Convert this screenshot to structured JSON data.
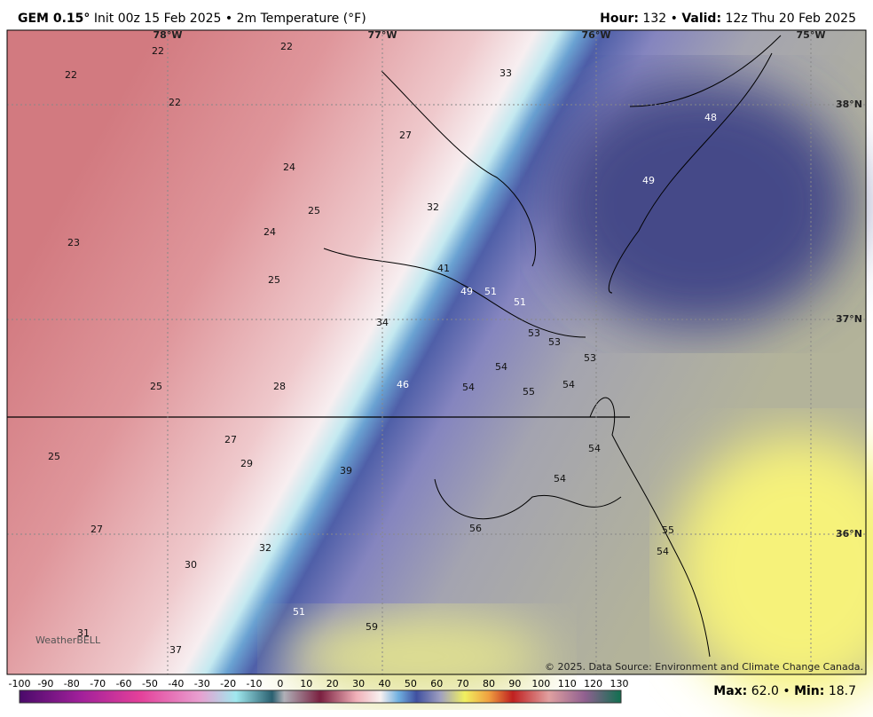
{
  "header": {
    "model": "GEM 0.15°",
    "description": "Init 00z 15 Feb 2025 • 2m Temperature (°F)",
    "hour_label": "Hour:",
    "hour_value": "132",
    "separator": "•",
    "valid_label": "Valid:",
    "valid_value": "12z Thu 20 Feb 2025"
  },
  "map": {
    "longitudes": [
      "78°W",
      "77°W",
      "76°W",
      "75°W"
    ],
    "latitudes": [
      "38°N",
      "37°N",
      "36°N"
    ],
    "labels": [
      22,
      22,
      22,
      22,
      33,
      27,
      24,
      25,
      24,
      32,
      23,
      25,
      41,
      49,
      51,
      51,
      48,
      49,
      34,
      53,
      53,
      53,
      54,
      25,
      28,
      46,
      54,
      55,
      54,
      27,
      25,
      29,
      39,
      54,
      54,
      27,
      56,
      55,
      54,
      30,
      32,
      51,
      59,
      31,
      37
    ],
    "credit": "© 2025. Data Source: Environment and Climate Change Canada.",
    "logo": "WeatherBELL"
  },
  "colorbar": {
    "ticks": [
      -100,
      -90,
      -80,
      -70,
      -60,
      -50,
      -40,
      -30,
      -20,
      -10,
      0,
      10,
      20,
      30,
      40,
      50,
      60,
      70,
      80,
      90,
      100,
      110,
      120,
      130
    ]
  },
  "footer": {
    "max_label": "Max:",
    "max_value": "62.0",
    "separator": "•",
    "min_label": "Min:",
    "min_value": "18.7"
  }
}
